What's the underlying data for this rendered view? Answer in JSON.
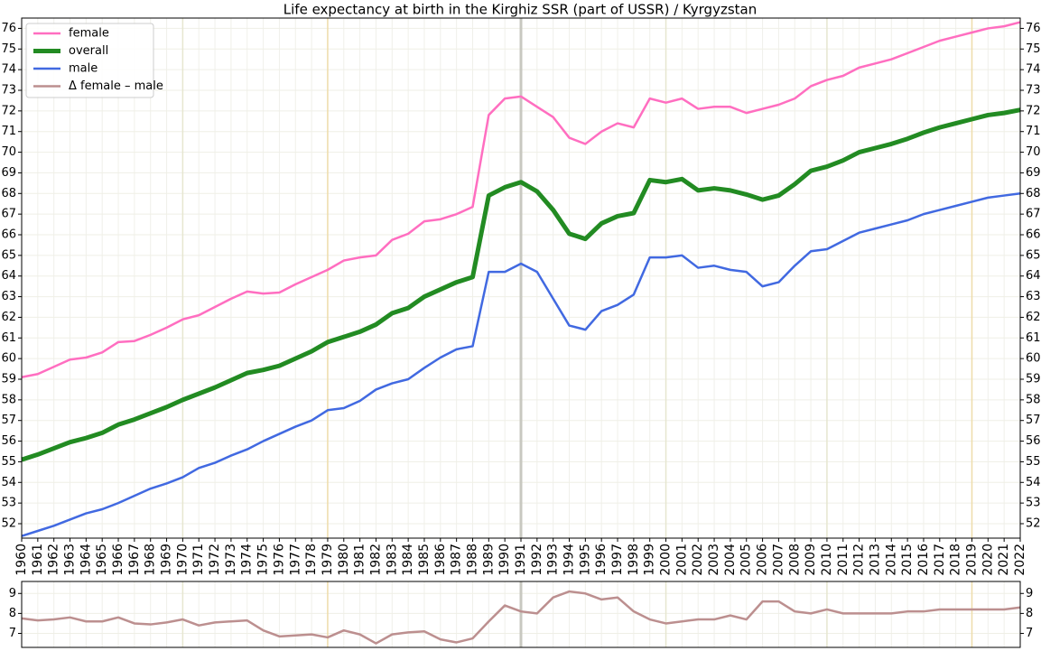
{
  "chart_data": [
    {
      "type": "line",
      "title": "Life expectancy at birth in the Kirghiz SSR (part of USSR)  /  Kyrgyzstan",
      "x": [
        1960,
        1961,
        1962,
        1963,
        1964,
        1965,
        1966,
        1967,
        1968,
        1969,
        1970,
        1971,
        1972,
        1973,
        1974,
        1975,
        1976,
        1977,
        1978,
        1979,
        1980,
        1981,
        1982,
        1983,
        1984,
        1985,
        1986,
        1987,
        1988,
        1989,
        1990,
        1991,
        1992,
        1993,
        1994,
        1995,
        1996,
        1997,
        1998,
        1999,
        2000,
        2001,
        2002,
        2003,
        2004,
        2005,
        2006,
        2007,
        2008,
        2009,
        2010,
        2011,
        2012,
        2013,
        2014,
        2015,
        2016,
        2017,
        2018,
        2019,
        2020,
        2021,
        2022
      ],
      "xlim": [
        1960,
        2022
      ],
      "xticks": [
        1960,
        1961,
        1962,
        1963,
        1964,
        1965,
        1966,
        1967,
        1968,
        1969,
        1970,
        1971,
        1972,
        1973,
        1974,
        1975,
        1976,
        1977,
        1978,
        1979,
        1980,
        1981,
        1982,
        1983,
        1984,
        1985,
        1986,
        1987,
        1988,
        1989,
        1990,
        1991,
        1992,
        1993,
        1994,
        1995,
        1996,
        1997,
        1998,
        1999,
        2000,
        2001,
        2002,
        2003,
        2004,
        2005,
        2006,
        2007,
        2008,
        2009,
        2010,
        2011,
        2012,
        2013,
        2014,
        2015,
        2016,
        2017,
        2018,
        2019,
        2020,
        2021,
        2022
      ],
      "ylim": [
        51.3,
        76.5
      ],
      "yticks": [
        52,
        53,
        54,
        55,
        56,
        57,
        58,
        59,
        60,
        61,
        62,
        63,
        64,
        65,
        66,
        67,
        68,
        69,
        70,
        71,
        72,
        73,
        74,
        75,
        76
      ],
      "grid": true,
      "legend": "upper left",
      "vlines": [
        {
          "x": 1970,
          "color": "#e6e6d0"
        },
        {
          "x": 1979,
          "color": "#eedcaa"
        },
        {
          "x": 1991,
          "color": "#c8c8c0"
        },
        {
          "x": 2000,
          "color": "#e6e6d0"
        },
        {
          "x": 2010,
          "color": "#e6e6d0"
        },
        {
          "x": 2019,
          "color": "#eedcaa"
        }
      ],
      "series": [
        {
          "name": "female",
          "color": "#ff6ec0",
          "width": 2.5,
          "values": [
            59.1,
            59.25,
            59.6,
            59.95,
            60.05,
            60.3,
            60.8,
            60.85,
            61.15,
            61.5,
            61.9,
            62.1,
            62.5,
            62.9,
            63.25,
            63.15,
            63.2,
            63.6,
            63.95,
            64.3,
            64.75,
            64.9,
            65.0,
            65.75,
            66.05,
            66.65,
            66.75,
            67.0,
            67.35,
            71.8,
            72.6,
            72.7,
            72.2,
            71.7,
            70.7,
            70.4,
            71.0,
            71.4,
            71.2,
            72.6,
            72.4,
            72.6,
            72.1,
            72.2,
            72.2,
            71.9,
            72.1,
            72.3,
            72.6,
            73.2,
            73.5,
            73.7,
            74.1,
            74.3,
            74.5,
            74.8,
            75.1,
            75.4,
            75.6,
            75.8,
            76.0,
            76.1,
            76.3
          ]
        },
        {
          "name": "overall",
          "color": "#228b22",
          "width": 5,
          "values": [
            55.1,
            55.35,
            55.65,
            55.95,
            56.15,
            56.4,
            56.8,
            57.05,
            57.35,
            57.65,
            58.0,
            58.3,
            58.6,
            58.95,
            59.3,
            59.45,
            59.65,
            60.0,
            60.35,
            60.8,
            61.05,
            61.3,
            61.65,
            62.2,
            62.45,
            63.0,
            63.35,
            63.7,
            63.95,
            67.9,
            68.3,
            68.55,
            68.1,
            67.2,
            66.05,
            65.8,
            66.55,
            66.9,
            67.05,
            68.65,
            68.55,
            68.7,
            68.15,
            68.25,
            68.15,
            67.95,
            67.7,
            67.9,
            68.45,
            69.1,
            69.3,
            69.6,
            70.0,
            70.2,
            70.4,
            70.65,
            70.95,
            71.2,
            71.4,
            71.6,
            71.8,
            71.9,
            72.05
          ]
        },
        {
          "name": "male",
          "color": "#4169e1",
          "width": 2.5,
          "values": [
            51.4,
            51.65,
            51.9,
            52.2,
            52.5,
            52.7,
            53.0,
            53.35,
            53.7,
            53.95,
            54.25,
            54.7,
            54.95,
            55.3,
            55.6,
            56.0,
            56.35,
            56.7,
            57.0,
            57.5,
            57.6,
            57.95,
            58.5,
            58.8,
            59.0,
            59.55,
            60.05,
            60.45,
            60.6,
            64.2,
            64.2,
            64.6,
            64.2,
            62.9,
            61.6,
            61.4,
            62.3,
            62.6,
            63.1,
            64.9,
            64.9,
            65.0,
            64.4,
            64.5,
            64.3,
            64.2,
            63.5,
            63.7,
            64.5,
            65.2,
            65.3,
            65.7,
            66.1,
            66.3,
            66.5,
            66.7,
            67.0,
            67.2,
            67.4,
            67.6,
            67.8,
            67.9,
            68.0
          ]
        }
      ]
    },
    {
      "type": "line",
      "x": [
        1960,
        1961,
        1962,
        1963,
        1964,
        1965,
        1966,
        1967,
        1968,
        1969,
        1970,
        1971,
        1972,
        1973,
        1974,
        1975,
        1976,
        1977,
        1978,
        1979,
        1980,
        1981,
        1982,
        1983,
        1984,
        1985,
        1986,
        1987,
        1988,
        1989,
        1990,
        1991,
        1992,
        1993,
        1994,
        1995,
        1996,
        1997,
        1998,
        1999,
        2000,
        2001,
        2002,
        2003,
        2004,
        2005,
        2006,
        2007,
        2008,
        2009,
        2010,
        2011,
        2012,
        2013,
        2014,
        2015,
        2016,
        2017,
        2018,
        2019,
        2020,
        2021,
        2022
      ],
      "xlim": [
        1960,
        2022
      ],
      "ylim": [
        6.3,
        9.6
      ],
      "yticks": [
        7,
        8,
        9
      ],
      "grid": true,
      "vlines": [
        {
          "x": 1970,
          "color": "#e6e6d0"
        },
        {
          "x": 1979,
          "color": "#eedcaa"
        },
        {
          "x": 1991,
          "color": "#c8c8c0"
        },
        {
          "x": 2000,
          "color": "#e6e6d0"
        },
        {
          "x": 2010,
          "color": "#e6e6d0"
        },
        {
          "x": 2019,
          "color": "#eedcaa"
        }
      ],
      "series": [
        {
          "name": "Δ female – male",
          "color": "#bc8f8f",
          "width": 2.5,
          "values": [
            7.75,
            7.65,
            7.7,
            7.8,
            7.6,
            7.6,
            7.8,
            7.5,
            7.45,
            7.55,
            7.7,
            7.4,
            7.55,
            7.6,
            7.65,
            7.15,
            6.85,
            6.9,
            6.95,
            6.8,
            7.15,
            6.95,
            6.5,
            6.95,
            7.05,
            7.1,
            6.7,
            6.55,
            6.75,
            7.6,
            8.4,
            8.1,
            8.0,
            8.8,
            9.1,
            9.0,
            8.7,
            8.8,
            8.1,
            7.7,
            7.5,
            7.6,
            7.7,
            7.7,
            7.9,
            7.7,
            8.6,
            8.6,
            8.1,
            8.0,
            8.2,
            8.0,
            8.0,
            8.0,
            8.0,
            8.1,
            8.1,
            8.2,
            8.2,
            8.2,
            8.2,
            8.2,
            8.3
          ]
        }
      ]
    }
  ]
}
